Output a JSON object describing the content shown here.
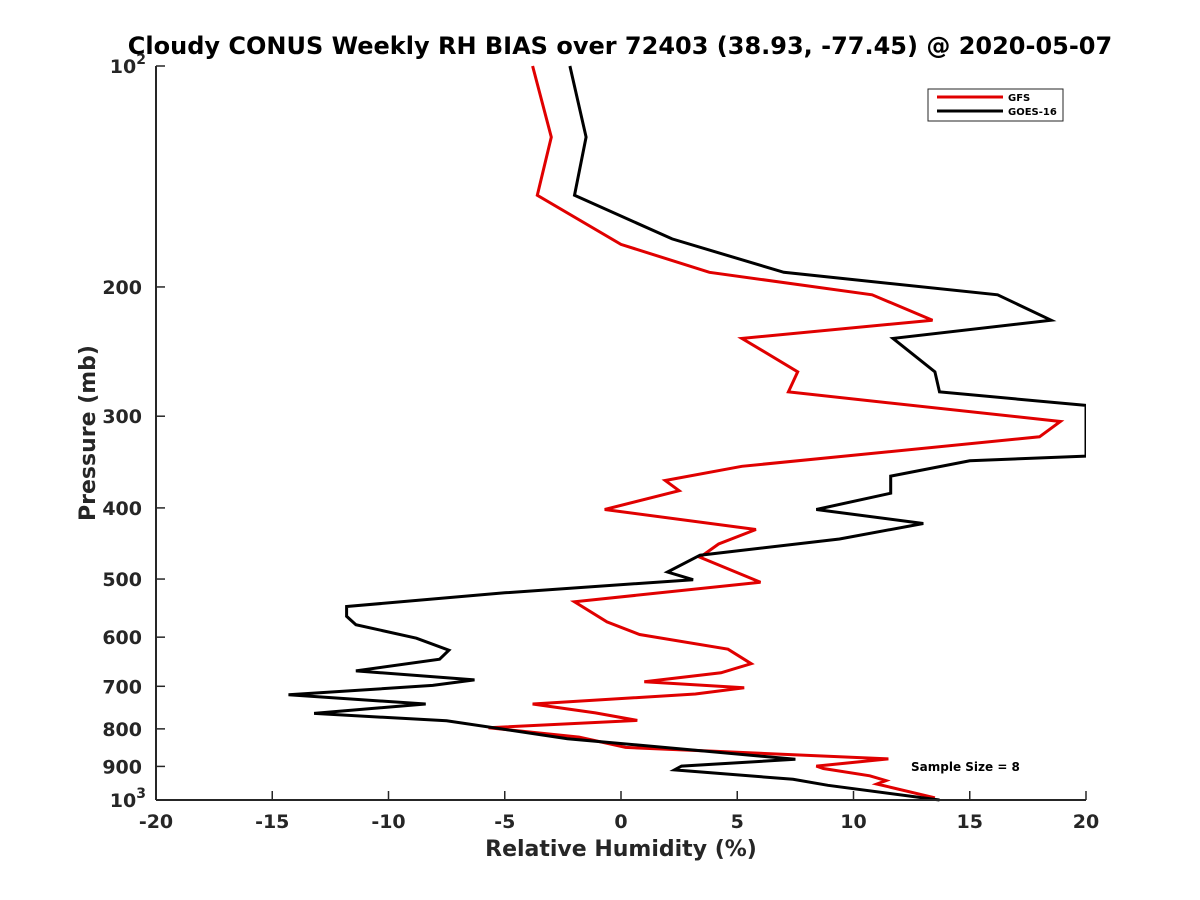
{
  "chart_data": {
    "type": "line",
    "title": "Cloudy CONUS Weekly RH BIAS over 72403 (38.93, -77.45) @ 2020-05-07",
    "xlabel": "Relative Humidity (%)",
    "ylabel": "Pressure (mb)",
    "xlim": [
      -20,
      20
    ],
    "ylim": [
      100,
      1000
    ],
    "y_scale": "log",
    "y_reversed": true,
    "grid": false,
    "legend_position": "top-right",
    "x_ticks": [
      "-20",
      "-15",
      "-10",
      "-5",
      "0",
      "5",
      "10",
      "15",
      "20"
    ],
    "y_ticks": [
      {
        "value": 100,
        "base": "10",
        "exp": "2"
      },
      {
        "value": 200,
        "label": "200"
      },
      {
        "value": 300,
        "label": "300"
      },
      {
        "value": 400,
        "label": "400"
      },
      {
        "value": 500,
        "label": "500"
      },
      {
        "value": 600,
        "label": "600"
      },
      {
        "value": 700,
        "label": "700"
      },
      {
        "value": 800,
        "label": "800"
      },
      {
        "value": 900,
        "label": "900"
      },
      {
        "value": 1000,
        "base": "10",
        "exp": "3"
      }
    ],
    "series": [
      {
        "name": "GFS",
        "color": "#e00000",
        "points": [
          [
            -3.8,
            100
          ],
          [
            -3.0,
            125
          ],
          [
            -3.6,
            150
          ],
          [
            0.0,
            175
          ],
          [
            3.8,
            191
          ],
          [
            10.8,
            205
          ],
          [
            13.4,
            222
          ],
          [
            5.2,
            235
          ],
          [
            7.6,
            261
          ],
          [
            7.2,
            278
          ],
          [
            18.9,
            305
          ],
          [
            18.0,
            320
          ],
          [
            5.2,
            351
          ],
          [
            1.9,
            367
          ],
          [
            2.5,
            379
          ],
          [
            -0.7,
            402
          ],
          [
            5.8,
            428
          ],
          [
            4.2,
            448
          ],
          [
            3.4,
            467
          ],
          [
            6.0,
            505
          ],
          [
            -2.0,
            537
          ],
          [
            -0.6,
            572
          ],
          [
            0.8,
            595
          ],
          [
            4.6,
            623
          ],
          [
            5.6,
            652
          ],
          [
            4.3,
            671
          ],
          [
            1.0,
            690
          ],
          [
            5.3,
            703
          ],
          [
            3.2,
            717
          ],
          [
            -3.8,
            740
          ],
          [
            -1.1,
            761
          ],
          [
            0.7,
            779
          ],
          [
            -5.7,
            797
          ],
          [
            -1.8,
            821
          ],
          [
            0.2,
            848
          ],
          [
            11.5,
            879
          ],
          [
            8.4,
            899
          ],
          [
            8.7,
            906
          ],
          [
            10.7,
            927
          ],
          [
            11.4,
            941
          ],
          [
            11.0,
            951
          ],
          [
            13.5,
            993
          ]
        ]
      },
      {
        "name": "GOES-16",
        "color": "#000000",
        "points": [
          [
            -2.2,
            100
          ],
          [
            -1.5,
            125
          ],
          [
            -2.0,
            150
          ],
          [
            2.2,
            172
          ],
          [
            7.0,
            191
          ],
          [
            16.2,
            205
          ],
          [
            18.5,
            222
          ],
          [
            11.7,
            235
          ],
          [
            13.5,
            261
          ],
          [
            13.7,
            278
          ],
          [
            20.0,
            290
          ],
          [
            20.0,
            340
          ],
          [
            15.0,
            345
          ],
          [
            11.6,
            362
          ],
          [
            11.6,
            382
          ],
          [
            8.4,
            402
          ],
          [
            13.0,
            420
          ],
          [
            9.4,
            441
          ],
          [
            3.4,
            464
          ],
          [
            2.0,
            489
          ],
          [
            3.1,
            501
          ],
          [
            -5.0,
            522
          ],
          [
            -11.8,
            545
          ],
          [
            -11.8,
            562
          ],
          [
            -11.4,
            577
          ],
          [
            -8.8,
            602
          ],
          [
            -7.4,
            625
          ],
          [
            -7.8,
            643
          ],
          [
            -11.4,
            667
          ],
          [
            -6.3,
            686
          ],
          [
            -8.1,
            698
          ],
          [
            -14.3,
            719
          ],
          [
            -8.4,
            740
          ],
          [
            -13.2,
            762
          ],
          [
            -7.5,
            780
          ],
          [
            -2.3,
            825
          ],
          [
            7.5,
            880
          ],
          [
            2.6,
            899
          ],
          [
            2.3,
            910
          ],
          [
            7.4,
            937
          ],
          [
            8.9,
            955
          ],
          [
            13.7,
            1000
          ]
        ]
      }
    ],
    "annotation": "Sample Size = 8"
  }
}
